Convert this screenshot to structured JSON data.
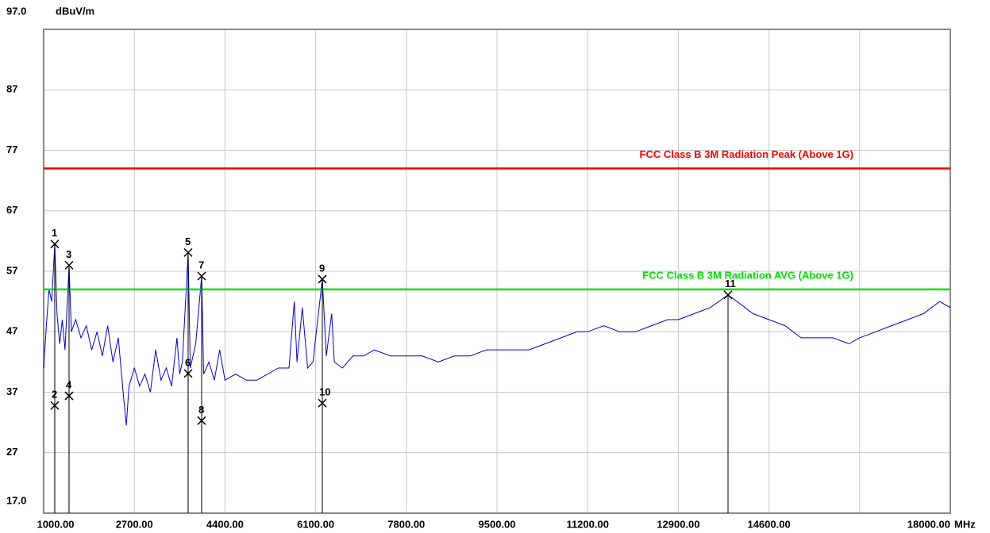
{
  "chart_data": {
    "type": "line",
    "y_unit": "dBuV/m",
    "x_unit": "MHz",
    "xlim": [
      1000,
      18000
    ],
    "ylim": [
      17,
      97
    ],
    "xticks": [
      {
        "value": 1000,
        "label": "1000.00"
      },
      {
        "value": 2700,
        "label": "2700.00"
      },
      {
        "value": 4400,
        "label": "4400.00"
      },
      {
        "value": 6100,
        "label": "6100.00"
      },
      {
        "value": 7800,
        "label": "7800.00"
      },
      {
        "value": 9500,
        "label": "9500.00"
      },
      {
        "value": 11200,
        "label": "11200.00"
      },
      {
        "value": 12900,
        "label": "12900.00"
      },
      {
        "value": 14600,
        "label": "14600.00"
      },
      {
        "value": 16300,
        "label": null
      },
      {
        "value": 18000,
        "label": "18000.00"
      }
    ],
    "yticks": [
      {
        "value": 97,
        "label": "97.0"
      },
      87,
      77,
      67,
      57,
      47,
      37,
      27,
      {
        "value": 17,
        "label": "17.0"
      }
    ],
    "grid": true,
    "series": [
      {
        "name": null,
        "color": "#0000cc",
        "x": [
          1000,
          1050,
          1100,
          1150,
          1208,
          1250,
          1300,
          1350,
          1400,
          1476,
          1520,
          1600,
          1700,
          1800,
          1900,
          2000,
          2100,
          2200,
          2300,
          2400,
          2500,
          2550,
          2600,
          2700,
          2800,
          2900,
          3000,
          3100,
          3200,
          3300,
          3400,
          3500,
          3550,
          3600,
          3709,
          3750,
          3850,
          3962,
          4000,
          4100,
          4200,
          4300,
          4400,
          4600,
          4800,
          5000,
          5200,
          5400,
          5600,
          5700,
          5750,
          5850,
          5950,
          6050,
          6225,
          6300,
          6400,
          6450,
          6600,
          6800,
          7000,
          7200,
          7500,
          7800,
          8100,
          8400,
          8700,
          9000,
          9300,
          9500,
          9800,
          10100,
          10400,
          10700,
          11000,
          11200,
          11500,
          11800,
          12100,
          12400,
          12700,
          12900,
          13200,
          13500,
          13832,
          14000,
          14300,
          14600,
          14900,
          15200,
          15500,
          15800,
          16100,
          16300,
          16600,
          16900,
          17200,
          17500,
          17800,
          18000
        ],
        "values": [
          41,
          48,
          54,
          52,
          61.5,
          50,
          45,
          49,
          44,
          58,
          47,
          49,
          46,
          48,
          44,
          47,
          43,
          48,
          42,
          46,
          36,
          31.5,
          38,
          41,
          38,
          40,
          37,
          44,
          39,
          41,
          38,
          46,
          40,
          42,
          60.1,
          41,
          45,
          56.2,
          40,
          42,
          39,
          44,
          39,
          40,
          39,
          39,
          40,
          41,
          41,
          52,
          42,
          51,
          41,
          42,
          55.7,
          43,
          50,
          42,
          41,
          43,
          43,
          44,
          43,
          43,
          43,
          42,
          43,
          43,
          44,
          44,
          44,
          44,
          45,
          46,
          47,
          47,
          48,
          47,
          47,
          48,
          49,
          49,
          50,
          51,
          53.1,
          52,
          50,
          49,
          48,
          46,
          46,
          46,
          45,
          46,
          47,
          48,
          49,
          50,
          52,
          51
        ]
      }
    ],
    "limits": [
      {
        "name": "FCC Class B 3M Radiation Peak (Above 1G)",
        "color": "#ff0000",
        "value": 74
      },
      {
        "name": "FCC Class B 3M Radiation AVG (Above 1G)",
        "color": "#00e000",
        "value": 54
      }
    ],
    "markers": [
      {
        "label": "1",
        "x": 1208,
        "y": 61.5
      },
      {
        "label": "2",
        "x": 1208,
        "y": 34.8
      },
      {
        "label": "3",
        "x": 1476,
        "y": 58.0
      },
      {
        "label": "4",
        "x": 1476,
        "y": 36.4
      },
      {
        "label": "5",
        "x": 3709,
        "y": 60.1
      },
      {
        "label": "6",
        "x": 3709,
        "y": 40.1
      },
      {
        "label": "7",
        "x": 3962,
        "y": 56.2
      },
      {
        "label": "8",
        "x": 3962,
        "y": 32.3
      },
      {
        "label": "9",
        "x": 6225,
        "y": 55.7
      },
      {
        "label": "10",
        "x": 6225,
        "y": 35.2
      },
      {
        "label": "11",
        "x": 13832,
        "y": 53.1
      }
    ]
  }
}
